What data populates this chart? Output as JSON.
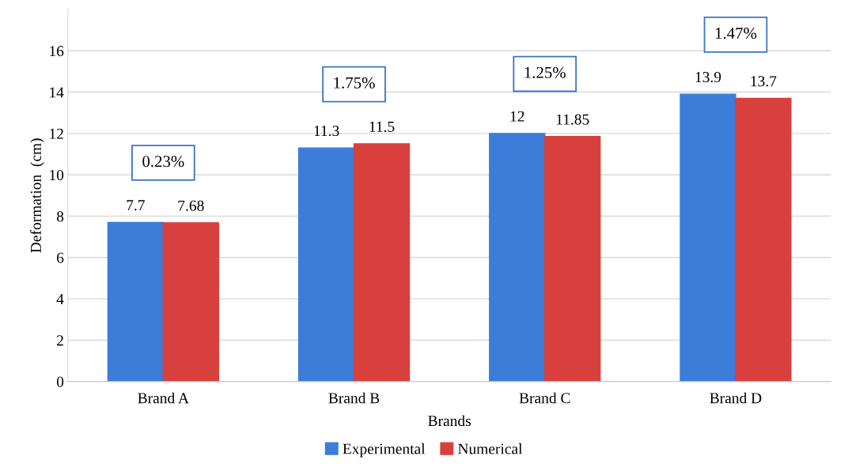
{
  "chart_data": {
    "type": "bar",
    "xlabel": "Brands",
    "ylabel": "Deformation  (cm)",
    "categories": [
      "Brand A",
      "Brand B",
      "Brand C",
      "Brand D"
    ],
    "series": [
      {
        "name": "Experimental",
        "color": "#3b7dd8",
        "values": [
          7.7,
          11.3,
          12,
          13.9
        ]
      },
      {
        "name": "Numerical",
        "color": "#d8403e",
        "values": [
          7.68,
          11.5,
          11.85,
          13.7
        ]
      }
    ],
    "ylim": [
      0,
      18
    ],
    "yticks": [
      0,
      2,
      4,
      6,
      8,
      10,
      12,
      14,
      16
    ],
    "grid": "y",
    "legend": "bottom",
    "data_labels": true,
    "annotations": [
      "0.23%",
      "1.75%",
      "1.25%",
      "1.47%"
    ]
  }
}
